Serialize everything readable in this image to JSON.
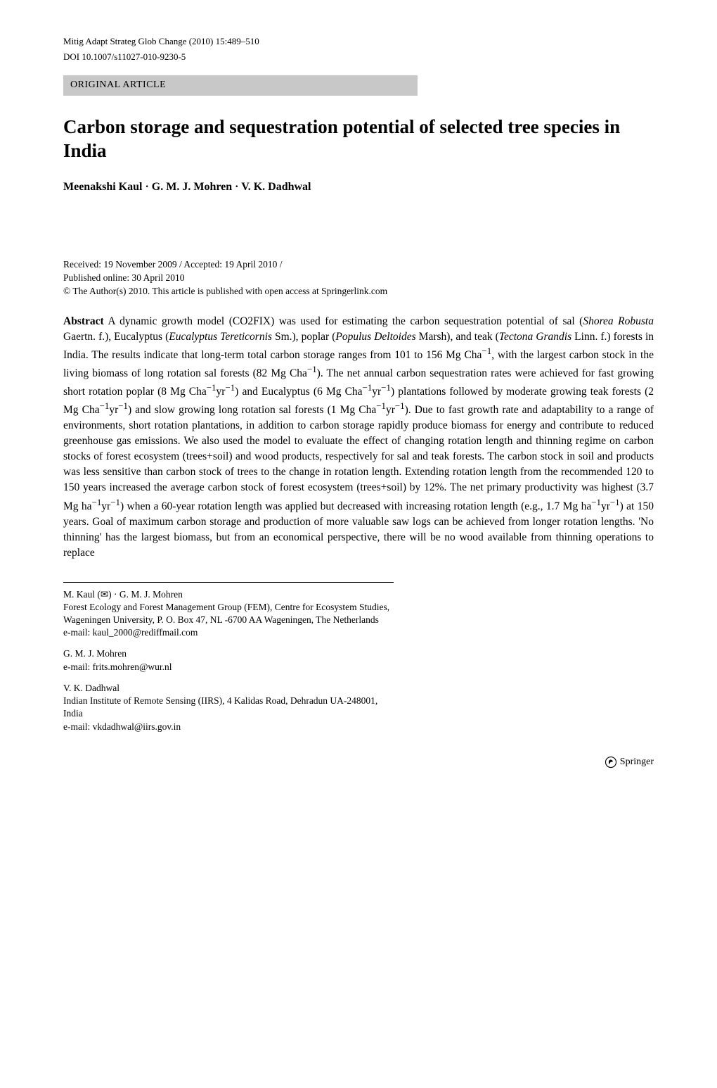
{
  "running_head": {
    "left": "Mitig Adapt Strateg Glob Change (2010) 15:489–510",
    "doi": "DOI 10.1007/s11027-010-9230-5"
  },
  "article_type": "ORIGINAL ARTICLE",
  "title": "Carbon storage and sequestration potential of selected tree species in India",
  "authors": "Meenakshi Kaul · G. M. J. Mohren · V. K. Dadhwal",
  "dates": {
    "received_accepted": "Received: 19 November 2009 / Accepted: 19 April 2010 /",
    "published": "Published online: 30 April 2010",
    "copyright": "© The Author(s) 2010. This article is published with open access at Springerlink.com"
  },
  "abstract_label": "Abstract",
  "abstract_html": "A dynamic growth model (CO2FIX) was used for estimating the carbon sequestration potential of sal (<span class=\"italic\">Shorea Robusta</span> Gaertn. f.), Eucalyptus (<span class=\"italic\">Eucalyptus Tereticornis</span> Sm.), poplar (<span class=\"italic\">Populus Deltoides</span> Marsh), and teak (<span class=\"italic\">Tectona Grandis</span> Linn. f.) forests in India. The results indicate that long-term total carbon storage ranges from 101 to 156 Mg Cha<sup>−1</sup>, with the largest carbon stock in the living biomass of long rotation sal forests (82 Mg Cha<sup>−1</sup>). The net annual carbon sequestration rates were achieved for fast growing short rotation poplar (8 Mg Cha<sup>−1</sup>yr<sup>−1</sup>) and Eucalyptus (6 Mg Cha<sup>−1</sup>yr<sup>−1</sup>) plantations followed by moderate growing teak forests (2 Mg Cha<sup>−1</sup>yr<sup>−1</sup>) and slow growing long rotation sal forests (1 Mg Cha<sup>−1</sup>yr<sup>−1</sup>). Due to fast growth rate and adaptability to a range of environments, short rotation plantations, in addition to carbon storage rapidly produce biomass for energy and contribute to reduced greenhouse gas emissions. We also used the model to evaluate the effect of changing rotation length and thinning regime on carbon stocks of forest ecosystem (trees+soil) and wood products, respectively for sal and teak forests. The carbon stock in soil and products was less sensitive than carbon stock of trees to the change in rotation length. Extending rotation length from the recommended 120 to 150 years increased the average carbon stock of forest ecosystem (trees+soil) by 12%. The net primary productivity was highest (3.7 Mg ha<sup>−1</sup>yr<sup>−1</sup>) when a 60-year rotation length was applied but decreased with increasing rotation length (e.g., 1.7 Mg ha<sup>−1</sup>yr<sup>−1</sup>) at 150 years. Goal of maximum carbon storage and production of more valuable saw logs can be achieved from longer rotation lengths. 'No thinning' has the largest biomass, but from an economical perspective, there will be no wood available from thinning operations to replace",
  "affiliations": [
    {
      "authors": "M. Kaul (✉) · G. M. J. Mohren",
      "lines": [
        "Forest Ecology and Forest Management Group (FEM), Centre for Ecosystem Studies,",
        "Wageningen University, P. O. Box 47, NL -6700 AA Wageningen, The Netherlands"
      ],
      "email": "e-mail: kaul_2000@rediffmail.com"
    },
    {
      "authors": "G. M. J. Mohren",
      "lines": [],
      "email": "e-mail: frits.mohren@wur.nl"
    },
    {
      "authors": "V. K. Dadhwal",
      "lines": [
        "Indian Institute of Remote Sensing (IIRS), 4 Kalidas Road, Dehradun UA-248001, India"
      ],
      "email": "e-mail: vkdadhwal@iirs.gov.in"
    }
  ],
  "footer": {
    "publisher": "Springer"
  },
  "colors": {
    "background": "#ffffff",
    "text": "#000000",
    "article_type_bg": "#c8c8c8"
  },
  "typography": {
    "body_font": "Georgia, Times New Roman, serif",
    "title_fontsize_pt": 20,
    "body_fontsize_pt": 11,
    "small_fontsize_pt": 10
  }
}
